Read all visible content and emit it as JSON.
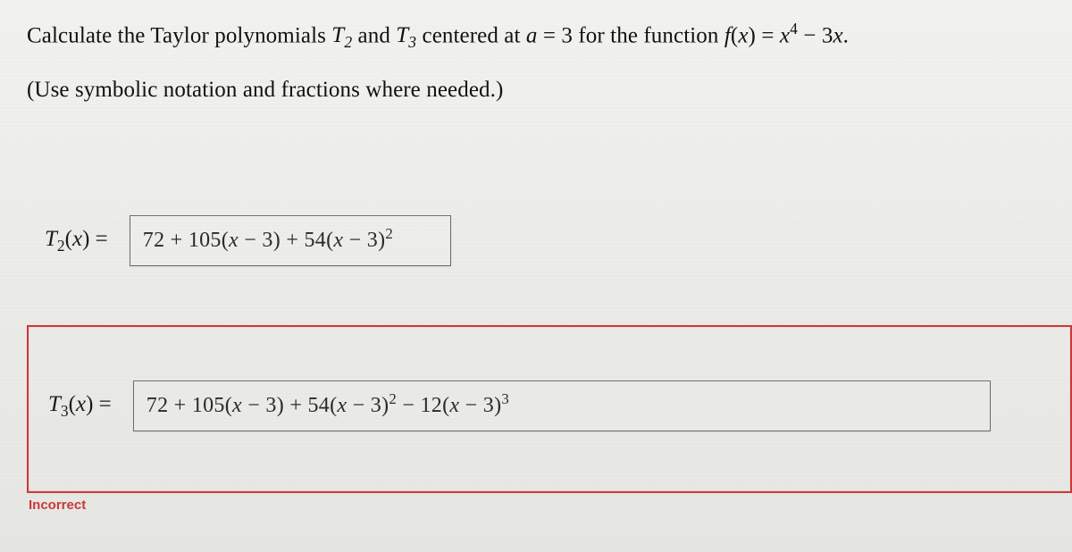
{
  "problem": {
    "line1_pre": "Calculate the Taylor polynomials ",
    "T2": "T",
    "T2_sub": "2",
    "and": " and ",
    "T3": "T",
    "T3_sub": "3",
    "line1_mid": " centered at ",
    "a_var": "a",
    "eq": " = ",
    "a_val": "3",
    "for_fn": " for the function ",
    "f_of_x": "f",
    "open_paren": "(",
    "x_var": "x",
    "close_paren": ")",
    "eq2": " = ",
    "x_pow": "x",
    "x_exp": "4",
    "minus3x": " − 3",
    "x_tail": "x",
    "period": ".",
    "line2": "(Use symbolic notation and fractions where needed.)"
  },
  "answers": {
    "t2": {
      "label_T": "T",
      "label_sub": "2",
      "label_of": "(",
      "label_x": "x",
      "label_close": ") =",
      "expr_a": "72 + 105",
      "expr_b_open": "(",
      "expr_b_x": "x",
      "expr_b_mid": " − 3",
      "expr_b_close": ")",
      "expr_plus": " + 54",
      "expr_c_open": "(",
      "expr_c_x": "x",
      "expr_c_mid": " − 3",
      "expr_c_close": ")",
      "expr_c_pow": "2"
    },
    "t3": {
      "label_T": "T",
      "label_sub": "3",
      "label_of": "(",
      "label_x": "x",
      "label_close": ") =",
      "expr_a": "72 + 105",
      "expr_b_open": "(",
      "expr_b_x": "x",
      "expr_b_mid": " − 3",
      "expr_b_close": ")",
      "expr_plus": " + 54",
      "expr_c_open": "(",
      "expr_c_x": "x",
      "expr_c_mid": " − 3",
      "expr_c_close": ")",
      "expr_c_pow": "2",
      "expr_minus": " − 12",
      "expr_d_open": "(",
      "expr_d_x": "x",
      "expr_d_mid": " − 3",
      "expr_d_close": ")",
      "expr_d_pow": "3"
    }
  },
  "status": {
    "incorrect": "Incorrect"
  },
  "colors": {
    "error": "#c93a3a",
    "text": "#1a1a1a",
    "border": "#6b6b68"
  }
}
